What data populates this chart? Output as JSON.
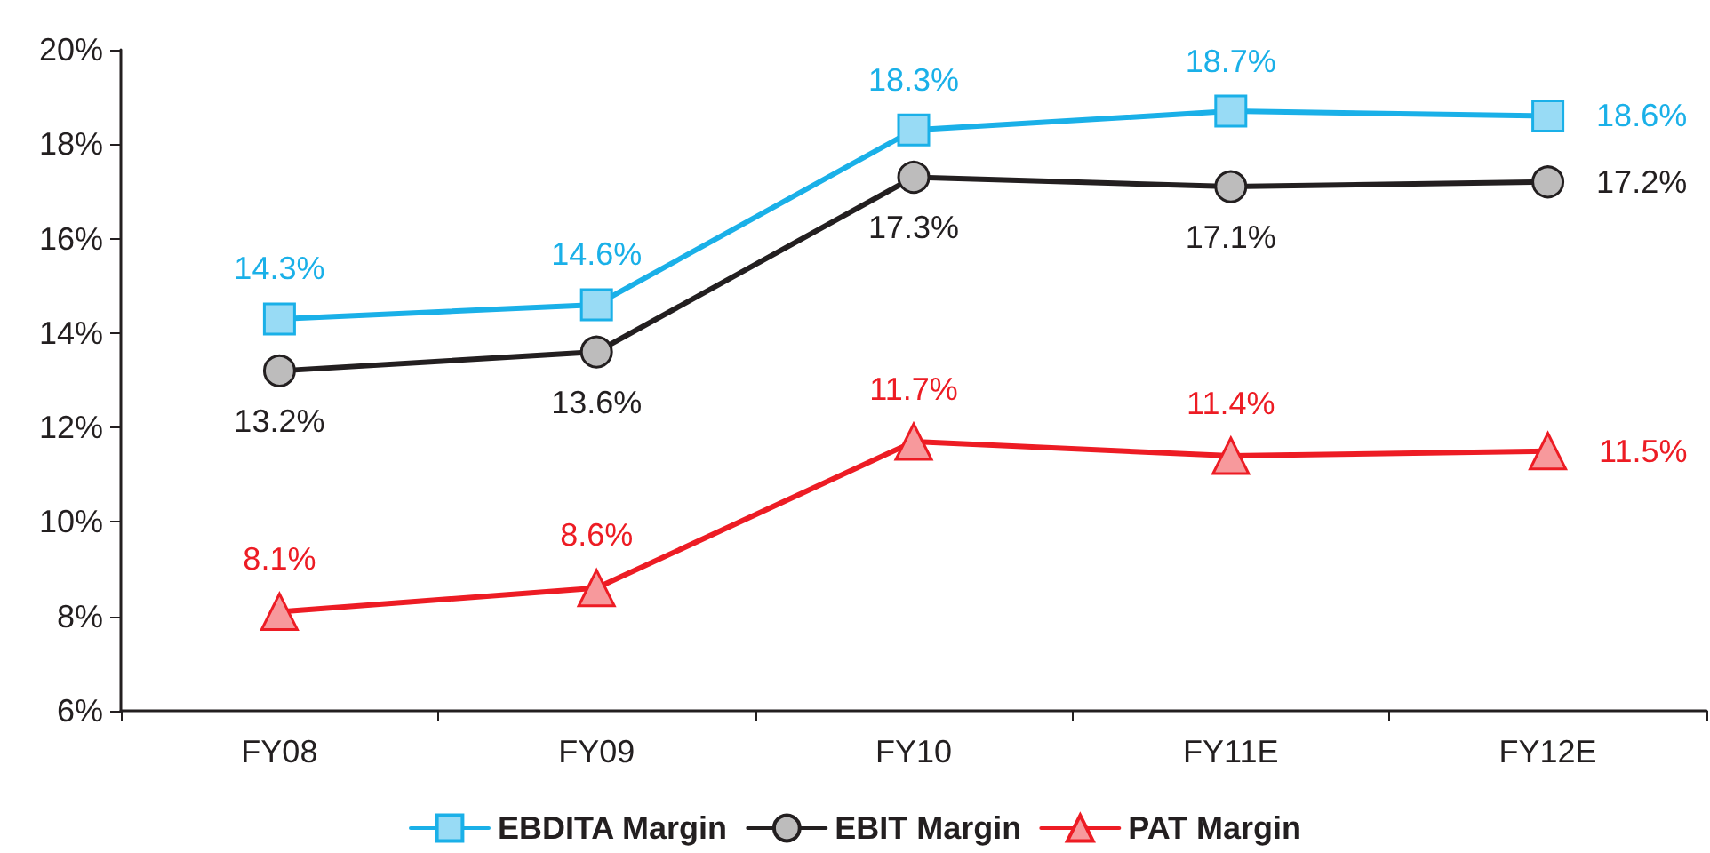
{
  "chart_data": {
    "type": "line",
    "categories": [
      "FY08",
      "FY09",
      "FY10",
      "FY11E",
      "FY12E"
    ],
    "series": [
      {
        "name": "EBDITA Margin",
        "color": "#1ab0e8",
        "marker": "square",
        "values": [
          14.3,
          14.6,
          18.3,
          18.7,
          18.6
        ],
        "value_labels": [
          "14.3%",
          "14.6%",
          "18.3%",
          "18.7%",
          "18.6%"
        ]
      },
      {
        "name": "EBIT Margin",
        "color": "#231f20",
        "marker": "circle",
        "values": [
          13.2,
          13.6,
          17.3,
          17.1,
          17.2
        ],
        "value_labels": [
          "13.2%",
          "13.6%",
          "17.3%",
          "17.1%",
          "17.2%"
        ]
      },
      {
        "name": "PAT Margin",
        "color": "#ed1c24",
        "marker": "triangle",
        "values": [
          8.1,
          8.6,
          11.7,
          11.4,
          11.5
        ],
        "value_labels": [
          "8.1%",
          "8.6%",
          "11.7%",
          "11.4%",
          "11.5%"
        ]
      }
    ],
    "ylim": [
      6,
      20
    ],
    "yticks": [
      {
        "value": 6,
        "label": "6%"
      },
      {
        "value": 8,
        "label": "8%"
      },
      {
        "value": 10,
        "label": "10%"
      },
      {
        "value": 12,
        "label": "12%"
      },
      {
        "value": 14,
        "label": "14%"
      },
      {
        "value": 16,
        "label": "16%"
      },
      {
        "value": 18,
        "label": "18%"
      },
      {
        "value": 20,
        "label": "20%"
      }
    ],
    "grid": false,
    "legend": "bottom",
    "line_style": "solid"
  }
}
